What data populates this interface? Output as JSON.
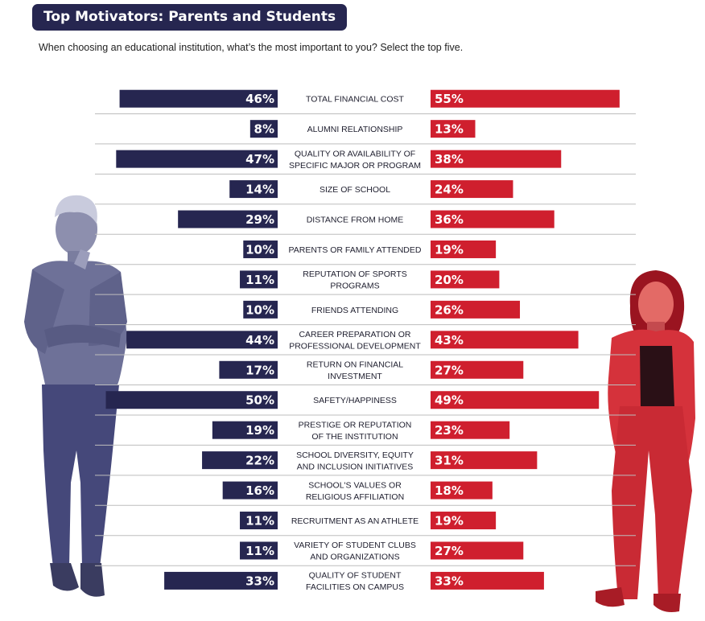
{
  "header": {
    "title": "Top Motivators: Parents and Students",
    "subtitle": "When choosing an educational institution, what’s the most important to you? Select the top five."
  },
  "colors": {
    "parents": "#262650",
    "students": "#cf1f2e",
    "title_bg": "#262650",
    "row_line": "#bdbdbd"
  },
  "chart_data": {
    "type": "bar",
    "title": "Top Motivators: Parents and Students",
    "orientation": "horizontal-diverging",
    "unit": "%",
    "categories": [
      "TOTAL FINANCIAL COST",
      "ALUMNI RELATIONSHIP",
      "QUALITY OR AVAILABILITY OF SPECIFIC MAJOR OR PROGRAM",
      "SIZE OF SCHOOL",
      "DISTANCE FROM HOME",
      "PARENTS OR FAMILY ATTENDED",
      "REPUTATION OF SPORTS PROGRAMS",
      "FRIENDS ATTENDING",
      "CAREER PREPARATION OR PROFESSIONAL DEVELOPMENT",
      "RETURN ON FINANCIAL INVESTMENT",
      "SAFETY/HAPPINESS",
      "PRESTIGE OR REPUTATION OF THE INSTITUTION",
      "SCHOOL DIVERSITY, EQUITY AND INCLUSION INITIATIVES",
      "SCHOOL'S VALUES OR RELIGIOUS AFFILIATION",
      "RECRUITMENT AS AN ATHLETE",
      "VARIETY OF STUDENT CLUBS AND ORGANIZATIONS",
      "QUALITY OF STUDENT FACILITIES ON CAMPUS"
    ],
    "label_lines": [
      [
        "TOTAL FINANCIAL COST"
      ],
      [
        "ALUMNI RELATIONSHIP"
      ],
      [
        "QUALITY OR AVAILABILITY OF",
        "SPECIFIC MAJOR OR PROGRAM"
      ],
      [
        "SIZE OF SCHOOL"
      ],
      [
        "DISTANCE FROM HOME"
      ],
      [
        "PARENTS OR FAMILY ATTENDED"
      ],
      [
        "REPUTATION OF SPORTS",
        "PROGRAMS"
      ],
      [
        "FRIENDS ATTENDING"
      ],
      [
        "CAREER PREPARATION OR",
        "PROFESSIONAL DEVELOPMENT"
      ],
      [
        "RETURN ON FINANCIAL",
        "INVESTMENT"
      ],
      [
        "SAFETY/HAPPINESS"
      ],
      [
        "PRESTIGE OR REPUTATION",
        "OF THE INSTITUTION"
      ],
      [
        "SCHOOL DIVERSITY, EQUITY",
        "AND INCLUSION INITIATIVES"
      ],
      [
        "SCHOOL'S VALUES OR",
        "RELIGIOUS AFFILIATION"
      ],
      [
        "RECRUITMENT AS AN ATHLETE"
      ],
      [
        "VARIETY OF STUDENT CLUBS",
        "AND ORGANIZATIONS"
      ],
      [
        "QUALITY OF STUDENT",
        "FACILITIES ON CAMPUS"
      ]
    ],
    "series": [
      {
        "name": "Parents",
        "values": [
          46,
          8,
          47,
          14,
          29,
          10,
          11,
          10,
          44,
          17,
          50,
          19,
          22,
          16,
          11,
          11,
          33
        ]
      },
      {
        "name": "Students",
        "values": [
          55,
          13,
          38,
          24,
          36,
          19,
          20,
          26,
          43,
          27,
          49,
          23,
          31,
          18,
          19,
          27,
          33
        ]
      }
    ]
  },
  "figures": {
    "left": "parent-figure",
    "right": "student-figure"
  }
}
